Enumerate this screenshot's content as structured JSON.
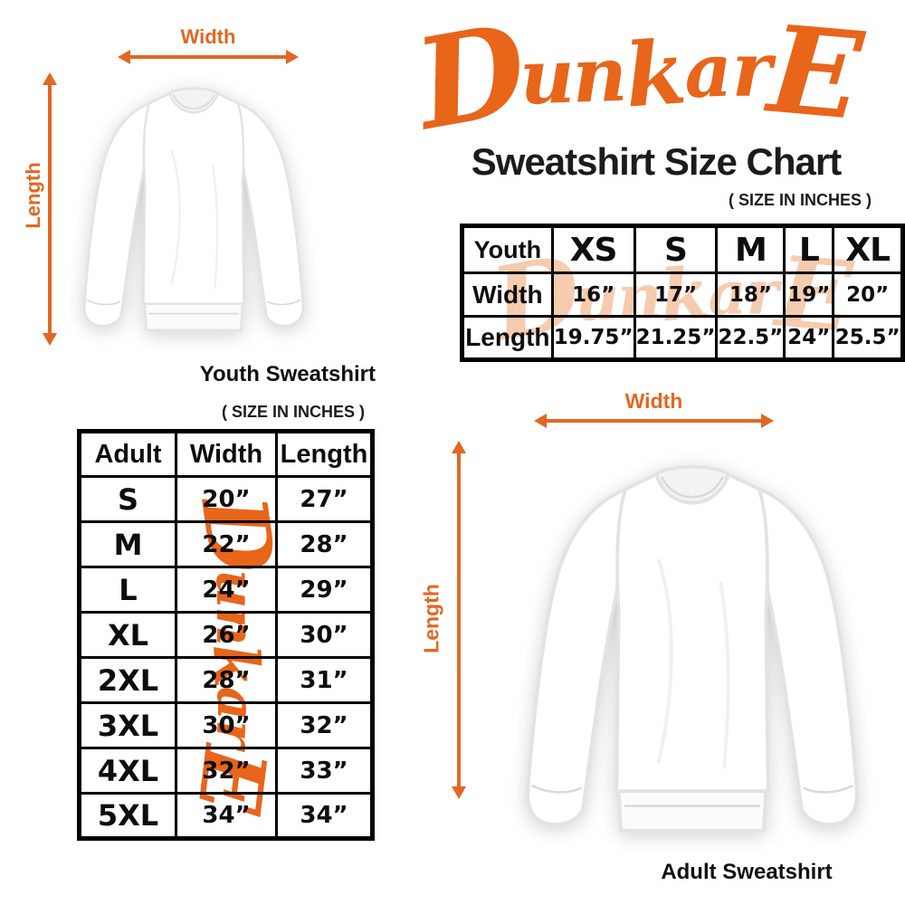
{
  "brand": {
    "logo_text": "DunkarE",
    "title": "Sweatshirt Size Chart",
    "size_note": "( SIZE IN INCHES )"
  },
  "colors": {
    "logo_orange": "#E8651A",
    "arrow_orange": "#E26722",
    "watermark_peach": "#F6CBAE",
    "ink": "#141414"
  },
  "youth_diagram": {
    "width_label": "Width",
    "length_label": "Length",
    "caption": "Youth Sweatshirt"
  },
  "adult_diagram": {
    "width_label": "Width",
    "length_label": "Length",
    "caption": "Adult Sweatshirt"
  },
  "youth_table": {
    "header": [
      "Youth",
      "XS",
      "S",
      "M",
      "L",
      "XL"
    ],
    "rows": [
      {
        "label": "Width",
        "values": [
          "16”",
          "17”",
          "18”",
          "19”",
          "20”"
        ]
      },
      {
        "label": "Length",
        "values": [
          "19.75”",
          "21.25”",
          "22.5”",
          "24”",
          "25.5”"
        ]
      }
    ]
  },
  "adult_table": {
    "size_note": "( SIZE IN INCHES )",
    "header": [
      "Adult",
      "Width",
      "Length"
    ],
    "rows": [
      {
        "size": "S",
        "width": "20”",
        "length": "27”"
      },
      {
        "size": "M",
        "width": "22”",
        "length": "28”"
      },
      {
        "size": "L",
        "width": "24”",
        "length": "29”"
      },
      {
        "size": "XL",
        "width": "26”",
        "length": "30”"
      },
      {
        "size": "2XL",
        "width": "28”",
        "length": "31”"
      },
      {
        "size": "3XL",
        "width": "30”",
        "length": "32”"
      },
      {
        "size": "4XL",
        "width": "32”",
        "length": "33”"
      },
      {
        "size": "5XL",
        "width": "34”",
        "length": "34”"
      }
    ]
  }
}
